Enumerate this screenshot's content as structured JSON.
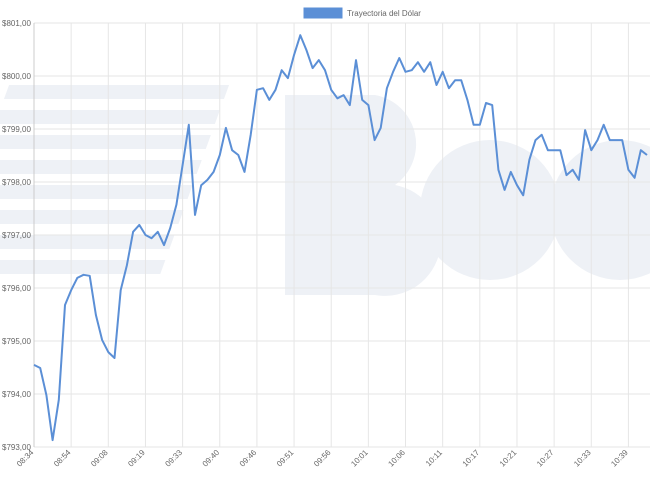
{
  "chart_data": {
    "type": "line",
    "series": [
      {
        "name": "Trayectoria del Dólar",
        "color": "#5b8fd6",
        "values": [
          794.55,
          794.49,
          793.98,
          793.13,
          793.89,
          795.68,
          795.96,
          796.19,
          796.25,
          796.23,
          795.49,
          795.02,
          794.79,
          794.68,
          795.96,
          796.43,
          797.06,
          797.19,
          797.0,
          796.94,
          797.06,
          796.81,
          797.13,
          797.57,
          798.32,
          799.08,
          797.38,
          797.94,
          798.04,
          798.19,
          798.51,
          799.02,
          798.6,
          798.51,
          798.19,
          798.89,
          799.74,
          799.77,
          799.55,
          799.74,
          800.11,
          799.96,
          800.4,
          800.77,
          800.49,
          800.15,
          800.3,
          800.11,
          799.74,
          799.58,
          799.64,
          799.45,
          800.3,
          799.55,
          799.45,
          798.79,
          799.02,
          799.77,
          800.08,
          800.34,
          800.08,
          800.11,
          800.26,
          800.08,
          800.26,
          799.83,
          800.08,
          799.77,
          799.92,
          799.92,
          799.55,
          799.08,
          799.08,
          799.49,
          799.45,
          798.23,
          797.85,
          798.19,
          797.94,
          797.75,
          798.42,
          798.79,
          798.89,
          798.6,
          798.6,
          798.6,
          798.13,
          798.23,
          798.04,
          798.98,
          798.6,
          798.79,
          799.08,
          798.79,
          798.79,
          798.79,
          798.23,
          798.08,
          798.6,
          798.51
        ]
      }
    ],
    "categories": [
      "08:34",
      null,
      null,
      null,
      null,
      null,
      "08:54",
      null,
      null,
      null,
      null,
      null,
      "09:08",
      null,
      null,
      null,
      null,
      null,
      "09:19",
      null,
      null,
      null,
      null,
      null,
      "09:33",
      null,
      null,
      null,
      null,
      null,
      "09:40",
      null,
      null,
      null,
      null,
      null,
      "09:46",
      null,
      null,
      null,
      null,
      null,
      "09:51",
      null,
      null,
      null,
      null,
      null,
      "09:56",
      null,
      null,
      null,
      null,
      null,
      "10:01",
      null,
      null,
      null,
      null,
      null,
      "10:06",
      null,
      null,
      null,
      null,
      null,
      "10:11",
      null,
      null,
      null,
      null,
      null,
      "10:17",
      null,
      null,
      null,
      null,
      null,
      "10:21",
      null,
      null,
      null,
      null,
      null,
      "10:27",
      null,
      null,
      null,
      null,
      null,
      "10:33",
      null,
      null,
      null,
      null,
      null,
      "10:39",
      null,
      null,
      null
    ],
    "ylim": [
      793,
      801
    ],
    "yticks": [
      {
        "value": 793,
        "label": "$793,00"
      },
      {
        "value": 794,
        "label": "$794,00"
      },
      {
        "value": 795,
        "label": "$795,00"
      },
      {
        "value": 796,
        "label": "$796,00"
      },
      {
        "value": 797,
        "label": "$797,00"
      },
      {
        "value": 798,
        "label": "$798,00"
      },
      {
        "value": 799,
        "label": "$799,00"
      },
      {
        "value": 800,
        "label": "$800,00"
      },
      {
        "value": 801,
        "label": "$801,00"
      }
    ],
    "grid": true,
    "legend": "top"
  }
}
